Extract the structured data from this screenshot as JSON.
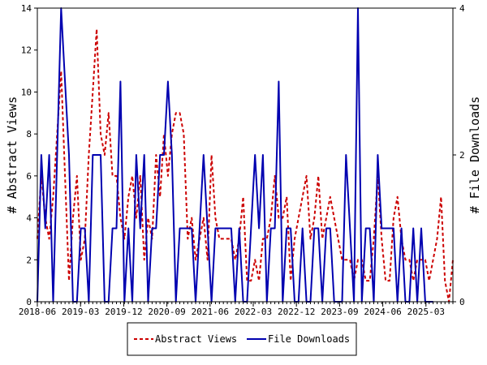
{
  "chart_data": {
    "type": "line",
    "ylabel": "# Abstract Views",
    "y2label": "# File Downloads",
    "ylim": [
      0,
      14
    ],
    "y2lim": [
      0,
      4
    ],
    "yticks": [
      "0",
      "2",
      "4",
      "6",
      "8",
      "10",
      "12",
      "14"
    ],
    "y2ticks": [
      "0",
      "2",
      "4"
    ],
    "xticks": [
      "2018-06",
      "2019-03",
      "2019-12",
      "2020-09",
      "2021-06",
      "2022-03",
      "2022-12",
      "2023-09",
      "2024-06",
      "2025-03"
    ],
    "grid": false,
    "legend_position": "bottom",
    "series": [
      {
        "name": "Abstract Views",
        "axis": "left",
        "color": "#cc0000",
        "style": "dashed",
        "values": [
          3,
          6,
          4,
          3,
          5,
          8,
          11,
          6,
          1,
          4,
          6,
          2,
          3,
          7,
          10,
          13,
          8,
          7,
          9,
          6,
          6,
          4,
          3,
          5,
          6,
          4,
          6,
          2,
          4,
          3,
          7,
          5,
          8,
          6,
          8,
          9,
          9,
          8,
          3,
          4,
          2,
          3,
          4,
          2,
          7,
          4,
          3,
          3,
          3,
          3,
          2,
          3,
          5,
          1,
          1,
          2,
          1,
          3,
          3,
          4,
          6,
          4,
          4,
          5,
          1,
          3,
          4,
          5,
          6,
          3,
          4,
          6,
          3,
          4,
          5,
          4,
          3,
          2,
          2,
          2,
          1,
          2,
          2,
          1,
          1,
          3,
          6,
          3,
          1,
          1,
          4,
          5,
          3,
          2,
          2,
          1,
          2,
          2,
          2,
          1,
          2,
          3,
          5,
          1,
          0,
          2
        ]
      },
      {
        "name": "File Downloads",
        "axis": "right",
        "color": "#0000b0",
        "style": "solid",
        "values": [
          0,
          2,
          1,
          2,
          0,
          2,
          4,
          3,
          2,
          0,
          0,
          1,
          1,
          0,
          2,
          2,
          2,
          0,
          0,
          1,
          1,
          3,
          0,
          1,
          0,
          2,
          1,
          2,
          0,
          1,
          1,
          2,
          2,
          3,
          2,
          0,
          1,
          1,
          1,
          1,
          0,
          1,
          2,
          1,
          0,
          1,
          1,
          1,
          1,
          1,
          0,
          1,
          0,
          0,
          1,
          2,
          1,
          2,
          0,
          1,
          1,
          3,
          0,
          1,
          1,
          0,
          0,
          1,
          0,
          0,
          1,
          1,
          0,
          1,
          1,
          0,
          0,
          0,
          2,
          1,
          0,
          4,
          0,
          1,
          1,
          0,
          2,
          1,
          1,
          1,
          1,
          0,
          1,
          0,
          0,
          1,
          0,
          1,
          0,
          0,
          0
        ]
      }
    ]
  }
}
